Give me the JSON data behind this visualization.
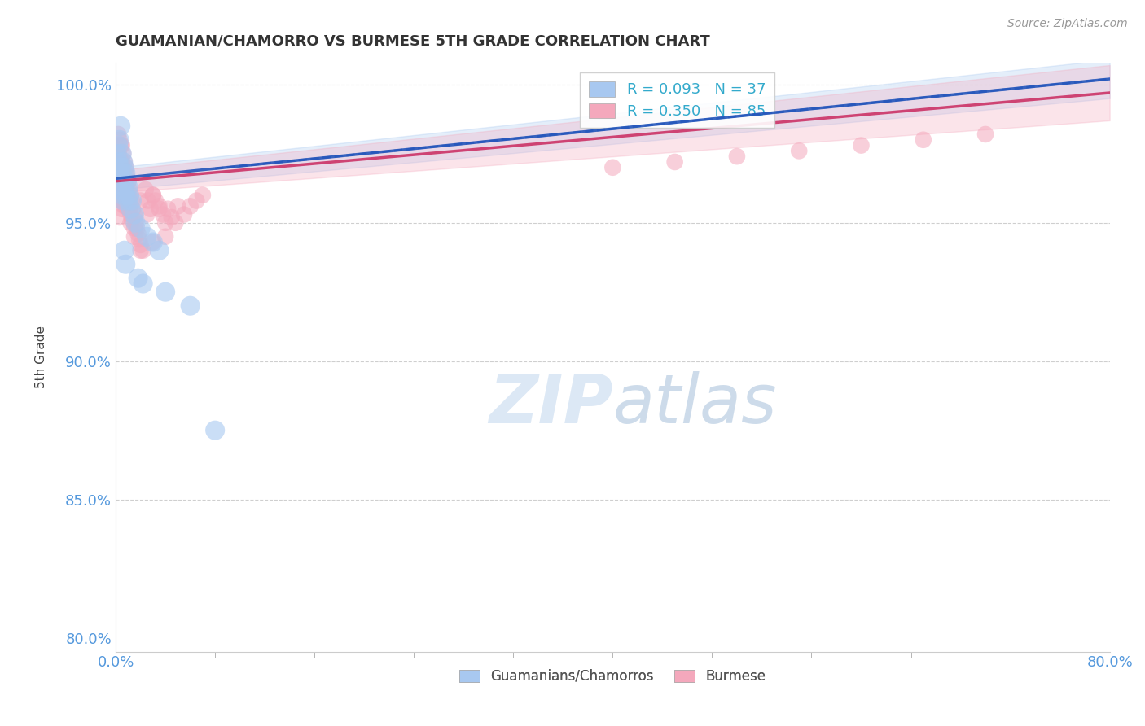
{
  "title": "GUAMANIAN/CHAMORRO VS BURMESE 5TH GRADE CORRELATION CHART",
  "source_text": "Source: ZipAtlas.com",
  "ylabel": "5th Grade",
  "xlim": [
    0.0,
    0.8
  ],
  "ylim": [
    0.795,
    1.008
  ],
  "xtick_labels": [
    "0.0%",
    "80.0%"
  ],
  "ytick_labels": [
    "80.0%",
    "85.0%",
    "90.0%",
    "95.0%",
    "100.0%"
  ],
  "yticks": [
    0.8,
    0.85,
    0.9,
    0.95,
    1.0
  ],
  "legend_label1": "Guamanians/Chamorros",
  "legend_label2": "Burmese",
  "R1": 0.093,
  "N1": 37,
  "R2": 0.35,
  "N2": 85,
  "blue_color": "#a8c8f0",
  "pink_color": "#f4a8bc",
  "blue_line_color": "#2255bb",
  "pink_line_color": "#cc3366",
  "background_color": "#ffffff",
  "watermark_color": "#dce8f5",
  "guam_x": [
    0.001,
    0.002,
    0.002,
    0.003,
    0.003,
    0.003,
    0.004,
    0.004,
    0.005,
    0.005,
    0.005,
    0.006,
    0.006,
    0.006,
    0.007,
    0.007,
    0.008,
    0.008,
    0.009,
    0.01,
    0.01,
    0.011,
    0.012,
    0.013,
    0.015,
    0.016,
    0.02,
    0.025,
    0.03,
    0.035,
    0.007,
    0.008,
    0.018,
    0.022,
    0.04,
    0.06,
    0.08
  ],
  "guam_y": [
    0.975,
    0.978,
    0.972,
    0.98,
    0.968,
    0.962,
    0.985,
    0.97,
    0.975,
    0.968,
    0.96,
    0.972,
    0.965,
    0.958,
    0.97,
    0.963,
    0.968,
    0.96,
    0.965,
    0.963,
    0.958,
    0.96,
    0.955,
    0.958,
    0.953,
    0.95,
    0.948,
    0.945,
    0.943,
    0.94,
    0.94,
    0.935,
    0.93,
    0.928,
    0.925,
    0.92,
    0.875
  ],
  "burm_x": [
    0.001,
    0.001,
    0.002,
    0.002,
    0.002,
    0.003,
    0.003,
    0.003,
    0.003,
    0.004,
    0.004,
    0.004,
    0.005,
    0.005,
    0.005,
    0.005,
    0.006,
    0.006,
    0.006,
    0.007,
    0.007,
    0.007,
    0.008,
    0.008,
    0.008,
    0.009,
    0.009,
    0.01,
    0.01,
    0.011,
    0.011,
    0.012,
    0.012,
    0.013,
    0.013,
    0.014,
    0.015,
    0.015,
    0.016,
    0.017,
    0.018,
    0.019,
    0.02,
    0.022,
    0.024,
    0.026,
    0.028,
    0.03,
    0.032,
    0.035,
    0.038,
    0.04,
    0.042,
    0.045,
    0.048,
    0.05,
    0.055,
    0.06,
    0.065,
    0.07,
    0.003,
    0.004,
    0.005,
    0.006,
    0.007,
    0.008,
    0.009,
    0.01,
    0.011,
    0.012,
    0.015,
    0.02,
    0.025,
    0.03,
    0.035,
    0.4,
    0.45,
    0.5,
    0.55,
    0.6,
    0.65,
    0.7,
    0.02,
    0.03,
    0.04
  ],
  "burm_y": [
    0.978,
    0.972,
    0.982,
    0.975,
    0.968,
    0.98,
    0.974,
    0.968,
    0.962,
    0.978,
    0.972,
    0.965,
    0.978,
    0.972,
    0.965,
    0.958,
    0.975,
    0.968,
    0.962,
    0.972,
    0.965,
    0.958,
    0.97,
    0.963,
    0.956,
    0.967,
    0.96,
    0.965,
    0.958,
    0.962,
    0.955,
    0.96,
    0.953,
    0.958,
    0.951,
    0.955,
    0.953,
    0.948,
    0.95,
    0.948,
    0.946,
    0.944,
    0.942,
    0.94,
    0.962,
    0.958,
    0.955,
    0.96,
    0.958,
    0.955,
    0.953,
    0.95,
    0.955,
    0.952,
    0.95,
    0.956,
    0.953,
    0.956,
    0.958,
    0.96,
    0.952,
    0.958,
    0.955,
    0.96,
    0.956,
    0.962,
    0.958,
    0.96,
    0.955,
    0.95,
    0.945,
    0.958,
    0.953,
    0.96,
    0.956,
    0.97,
    0.972,
    0.974,
    0.976,
    0.978,
    0.98,
    0.982,
    0.94,
    0.943,
    0.945
  ]
}
